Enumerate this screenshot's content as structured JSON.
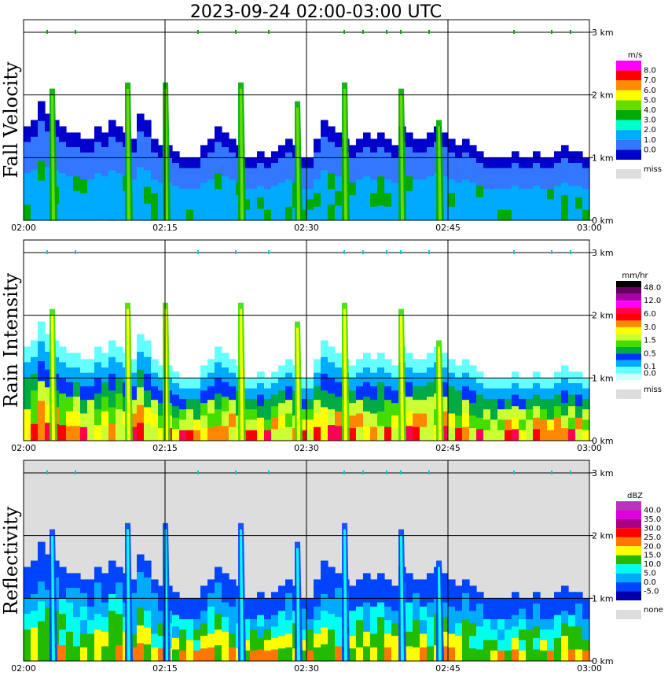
{
  "title": "2023-09-24   02:00-03:00 UTC",
  "time_ticks": [
    "02:00",
    "02:15",
    "02:30",
    "02:45",
    "03:00"
  ],
  "height_ticks": [
    "0 km",
    "1 km",
    "2 km",
    "3 km"
  ],
  "chart_data": [
    {
      "type": "heatmap",
      "panel_title": "Fall Velocity",
      "x_range": [
        "02:00",
        "03:00"
      ],
      "ylim_km": [
        0,
        3.2
      ],
      "grid": true,
      "legend_position": "right",
      "colorbar": {
        "unit": "m/s",
        "levels": [
          "8.0",
          "7.0",
          "6.0",
          "5.0",
          "4.0",
          "3.0",
          "2.0",
          "1.0",
          "0.0"
        ],
        "colors": [
          "#ff00ff",
          "#ff0000",
          "#ff8c00",
          "#ffff00",
          "#66dd00",
          "#00aa00",
          "#00ffcc",
          "#00aaff",
          "#3377ff",
          "#0000cc"
        ],
        "missing_label": "miss",
        "missing_color": "#dddddd"
      },
      "background": "#ffffff",
      "echo_top_profile_km": [
        1.5,
        1.6,
        1.9,
        1.7,
        1.6,
        1.5,
        1.4,
        1.4,
        1.3,
        1.3,
        1.5,
        1.4,
        1.6,
        1.5,
        1.4,
        1.3,
        1.7,
        1.6,
        1.3,
        1.2,
        1.2,
        1.1,
        1.0,
        1.0,
        1.0,
        1.2,
        1.3,
        1.5,
        1.4,
        1.3,
        1.2,
        1.0,
        1.0,
        1.1,
        1.0,
        1.1,
        1.2,
        1.3,
        1.2,
        1.0,
        1.0,
        1.3,
        1.6,
        1.5,
        1.4,
        1.3,
        1.2,
        1.3,
        1.4,
        1.3,
        1.4,
        1.3,
        1.2,
        1.5,
        1.4,
        1.3,
        1.3,
        1.4,
        1.5,
        1.4,
        1.3,
        1.2,
        1.3,
        1.2,
        1.1,
        1.0,
        1.0,
        1.0,
        1.0,
        1.1,
        1.0,
        1.0,
        1.1,
        1.0,
        1.0,
        1.1,
        1.2,
        1.1,
        1.1,
        1.0
      ],
      "tall_streaks": [
        {
          "time": "02:03",
          "top_km": 2.1
        },
        {
          "time": "02:11",
          "top_km": 2.2
        },
        {
          "time": "02:15",
          "top_km": 2.2
        },
        {
          "time": "02:23",
          "top_km": 2.2
        },
        {
          "time": "02:29",
          "top_km": 1.9
        },
        {
          "time": "02:34",
          "top_km": 2.2
        },
        {
          "time": "02:40",
          "top_km": 2.1
        },
        {
          "time": "02:44",
          "top_km": 1.6
        }
      ]
    },
    {
      "type": "heatmap",
      "panel_title": "Rain Intensity",
      "x_range": [
        "02:00",
        "03:00"
      ],
      "ylim_km": [
        0,
        3.2
      ],
      "grid": true,
      "legend_position": "right",
      "colorbar": {
        "unit": "mm/hr",
        "levels": [
          "48.0",
          "",
          "12.0",
          "",
          "6.0",
          "",
          "3.0",
          "",
          "1.5",
          "",
          "0.5",
          "",
          "0.1",
          "0.0"
        ],
        "colors": [
          "#000000",
          "#660066",
          "#aa00aa",
          "#ff00ff",
          "#ff0055",
          "#ff0000",
          "#ff8800",
          "#ffff00",
          "#ccff33",
          "#44dd00",
          "#00aa44",
          "#0033ff",
          "#00aaff",
          "#66ffff",
          "#ccffff"
        ],
        "missing_label": "miss",
        "missing_color": "#dddddd"
      },
      "background": "#ffffff",
      "echo_top_profile_km": [
        1.5,
        1.6,
        1.9,
        1.7,
        1.6,
        1.5,
        1.4,
        1.4,
        1.3,
        1.3,
        1.5,
        1.4,
        1.6,
        1.5,
        1.4,
        1.3,
        1.7,
        1.6,
        1.3,
        1.2,
        1.2,
        1.1,
        1.0,
        1.0,
        1.0,
        1.2,
        1.3,
        1.5,
        1.4,
        1.3,
        1.2,
        1.0,
        1.0,
        1.1,
        1.0,
        1.1,
        1.2,
        1.3,
        1.2,
        1.0,
        1.0,
        1.3,
        1.6,
        1.5,
        1.4,
        1.3,
        1.2,
        1.3,
        1.4,
        1.3,
        1.4,
        1.3,
        1.2,
        1.5,
        1.4,
        1.3,
        1.3,
        1.4,
        1.5,
        1.4,
        1.3,
        1.2,
        1.3,
        1.2,
        1.1,
        1.0,
        1.0,
        1.0,
        1.0,
        1.1,
        1.0,
        1.0,
        1.1,
        1.0,
        1.0,
        1.1,
        1.2,
        1.1,
        1.1,
        1.0
      ],
      "tall_streaks": [
        {
          "time": "02:03",
          "top_km": 2.1
        },
        {
          "time": "02:11",
          "top_km": 2.2
        },
        {
          "time": "02:15",
          "top_km": 2.2
        },
        {
          "time": "02:23",
          "top_km": 2.2
        },
        {
          "time": "02:29",
          "top_km": 1.9
        },
        {
          "time": "02:34",
          "top_km": 2.2
        },
        {
          "time": "02:40",
          "top_km": 2.1
        },
        {
          "time": "02:44",
          "top_km": 1.6
        }
      ]
    },
    {
      "type": "heatmap",
      "panel_title": "Reflectivity",
      "x_range": [
        "02:00",
        "03:00"
      ],
      "ylim_km": [
        0,
        3.2
      ],
      "grid": true,
      "legend_position": "right",
      "colorbar": {
        "unit": "dBZ",
        "levels": [
          "40.0",
          "35.0",
          "30.0",
          "25.0",
          "20.0",
          "15.0",
          "10.0",
          "5.0",
          "0.0",
          "-5.0"
        ],
        "colors": [
          "#bb33bb",
          "#dd00dd",
          "#aa0088",
          "#ff0000",
          "#ff7700",
          "#ffff00",
          "#22bb00",
          "#00ffee",
          "#00aaff",
          "#0044ff",
          "#0000aa"
        ],
        "missing_label": "none",
        "missing_color": "#dddddd"
      },
      "background": "#dddddd",
      "echo_top_profile_km": [
        1.5,
        1.6,
        1.9,
        1.7,
        1.6,
        1.5,
        1.4,
        1.4,
        1.3,
        1.3,
        1.5,
        1.4,
        1.6,
        1.5,
        1.4,
        1.3,
        1.7,
        1.6,
        1.3,
        1.2,
        1.2,
        1.1,
        1.0,
        1.0,
        1.0,
        1.2,
        1.3,
        1.5,
        1.4,
        1.3,
        1.2,
        1.0,
        1.0,
        1.1,
        1.0,
        1.1,
        1.2,
        1.3,
        1.2,
        1.0,
        1.0,
        1.3,
        1.6,
        1.5,
        1.4,
        1.3,
        1.2,
        1.3,
        1.4,
        1.3,
        1.4,
        1.3,
        1.2,
        1.5,
        1.4,
        1.3,
        1.3,
        1.4,
        1.5,
        1.4,
        1.3,
        1.2,
        1.3,
        1.2,
        1.1,
        1.0,
        1.0,
        1.0,
        1.0,
        1.1,
        1.0,
        1.0,
        1.1,
        1.0,
        1.0,
        1.1,
        1.2,
        1.1,
        1.1,
        1.0
      ],
      "tall_streaks": [
        {
          "time": "02:03",
          "top_km": 2.1
        },
        {
          "time": "02:11",
          "top_km": 2.2
        },
        {
          "time": "02:15",
          "top_km": 2.2
        },
        {
          "time": "02:23",
          "top_km": 2.2
        },
        {
          "time": "02:29",
          "top_km": 1.9
        },
        {
          "time": "02:34",
          "top_km": 2.2
        },
        {
          "time": "02:40",
          "top_km": 2.1
        },
        {
          "time": "02:44",
          "top_km": 1.6
        }
      ]
    }
  ]
}
